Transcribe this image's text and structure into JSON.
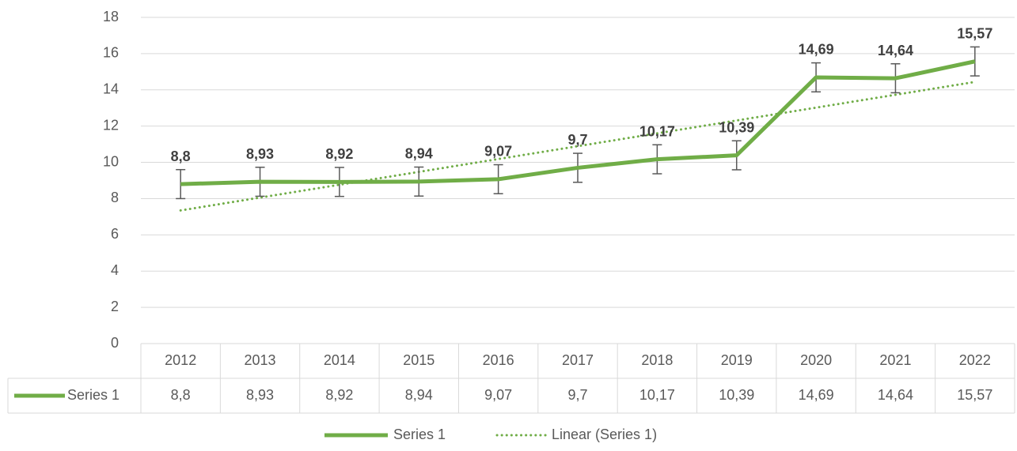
{
  "chart_data": {
    "type": "line",
    "categories": [
      "2012",
      "2013",
      "2014",
      "2015",
      "2016",
      "2017",
      "2018",
      "2019",
      "2020",
      "2021",
      "2022"
    ],
    "series": [
      {
        "name": "Series 1",
        "color": "#70ad47",
        "values": [
          8.8,
          8.93,
          8.92,
          8.94,
          9.07,
          9.7,
          10.17,
          10.39,
          14.69,
          14.64,
          15.57
        ],
        "value_labels": [
          "8,8",
          "8,93",
          "8,92",
          "8,94",
          "9,07",
          "9,7",
          "10,17",
          "10,39",
          "14,69",
          "14,64",
          "15,57"
        ],
        "errors": [
          0.8,
          0.8,
          0.8,
          0.8,
          0.8,
          0.8,
          0.8,
          0.8,
          0.8,
          0.8,
          0.8
        ]
      }
    ],
    "trendline": {
      "type": "linear",
      "name": "Linear (Series 1)",
      "color": "#70ad47"
    },
    "ylim": [
      0,
      18
    ],
    "yticks": [
      0,
      2,
      4,
      6,
      8,
      10,
      12,
      14,
      16,
      18
    ],
    "grid": true,
    "data_table": true,
    "legend": "bottom"
  }
}
